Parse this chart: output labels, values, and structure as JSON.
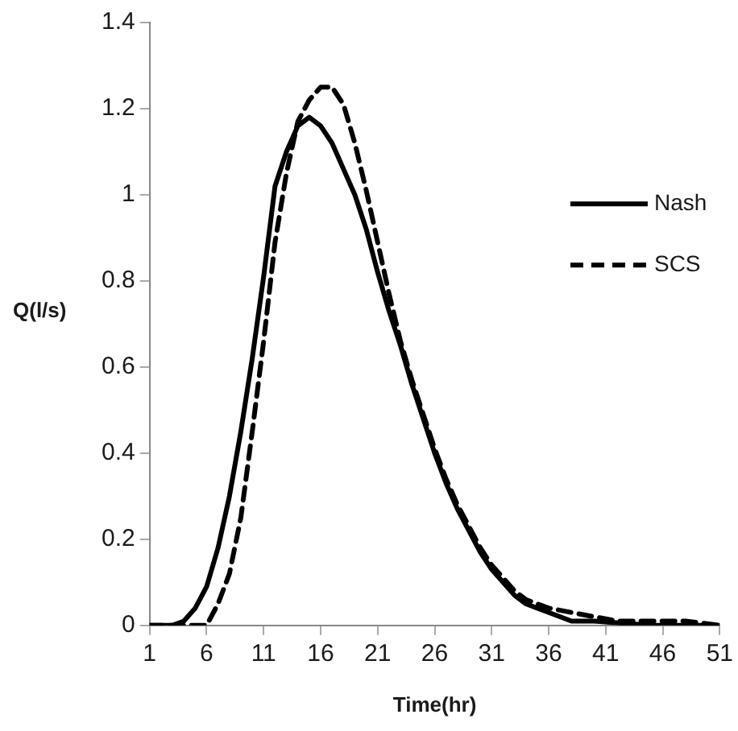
{
  "chart_data": {
    "type": "line",
    "xlabel": "Time(hr)",
    "ylabel": "Q(l/s)",
    "xlim": [
      1,
      51
    ],
    "xticks": [
      1,
      6,
      11,
      16,
      21,
      26,
      31,
      36,
      41,
      46,
      51
    ],
    "ylim": [
      0,
      1.4
    ],
    "yticks": [
      0,
      0.2,
      0.4,
      0.6,
      0.8,
      1,
      1.2,
      1.4
    ],
    "grid": false,
    "legend": "right",
    "marker": "none",
    "series": [
      {
        "name": "Nash",
        "color": "#000000",
        "line_style": "solid",
        "x": [
          1,
          2,
          3,
          4,
          5,
          6,
          7,
          8,
          9,
          10,
          11,
          12,
          13,
          14,
          15,
          16,
          17,
          18,
          19,
          20,
          21,
          22,
          23,
          24,
          25,
          26,
          27,
          28,
          29,
          30,
          31,
          32,
          33,
          34,
          35,
          36,
          38,
          40,
          45,
          51
        ],
        "values": [
          0,
          0,
          0,
          0.01,
          0.04,
          0.09,
          0.18,
          0.3,
          0.45,
          0.62,
          0.81,
          1.02,
          1.1,
          1.16,
          1.18,
          1.16,
          1.12,
          1.06,
          1,
          0.92,
          0.82,
          0.73,
          0.65,
          0.56,
          0.48,
          0.4,
          0.33,
          0.27,
          0.22,
          0.17,
          0.13,
          0.1,
          0.07,
          0.05,
          0.04,
          0.03,
          0.01,
          0.01,
          0,
          0
        ]
      },
      {
        "name": "SCS",
        "color": "#000000",
        "line_style": "dashed",
        "x": [
          1,
          3,
          5,
          6,
          7,
          8,
          9,
          10,
          11,
          12,
          13,
          14,
          15,
          16,
          17,
          18,
          19,
          20,
          21,
          22,
          23,
          24,
          25,
          26,
          27,
          28,
          29,
          30,
          31,
          32,
          33,
          34,
          35,
          36,
          38,
          40,
          42,
          45,
          48,
          51
        ],
        "values": [
          0,
          0,
          0,
          0,
          0.05,
          0.12,
          0.25,
          0.45,
          0.66,
          0.89,
          1.05,
          1.17,
          1.22,
          1.25,
          1.25,
          1.21,
          1.12,
          1.01,
          0.89,
          0.77,
          0.66,
          0.57,
          0.49,
          0.41,
          0.34,
          0.28,
          0.23,
          0.18,
          0.14,
          0.11,
          0.08,
          0.06,
          0.05,
          0.04,
          0.03,
          0.02,
          0.01,
          0.01,
          0.01,
          0
        ]
      }
    ]
  }
}
